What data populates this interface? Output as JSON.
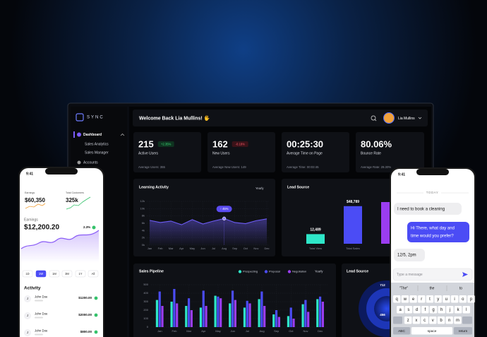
{
  "sidebar": {
    "logo": "SYNC",
    "items": [
      "Dashboard",
      "Sales Analytics",
      "Sales Manager",
      "Accounts"
    ]
  },
  "header": {
    "welcome": "Welcome Back Lia Mullins! 🖐",
    "user": "Lia Mullins"
  },
  "kpis": [
    {
      "value": "215",
      "change": "+2.35%",
      "label": "Active Users",
      "average": "Average Users: 355"
    },
    {
      "value": "162",
      "change": "-0.18%",
      "label": "New Users",
      "average": "Average New Users: 149"
    },
    {
      "value": "00:25:30",
      "label": "Average Time on Page",
      "average": "Average Time: 00:03:45"
    },
    {
      "value": "80.06%",
      "label": "Bounce Rate",
      "average": "Average Rate: 29.30%"
    }
  ],
  "learning_activity": {
    "title": "Learning Activity",
    "period": "Yearly",
    "ylim": [
      0,
      12000
    ],
    "yticks": [
      {
        "value": 0,
        "label": "0k"
      },
      {
        "value": 2000,
        "label": "2k"
      },
      {
        "value": 4000,
        "label": "4k"
      },
      {
        "value": 6000,
        "label": "6k"
      },
      {
        "value": 8000,
        "label": "8k"
      },
      {
        "value": 10000,
        "label": "10k"
      },
      {
        "value": 12000,
        "label": "12k"
      }
    ],
    "months": [
      "Jan",
      "Feb",
      "Mar",
      "Apr",
      "May",
      "Jun",
      "Jul",
      "Aug",
      "Sep",
      "Oct",
      "Nov",
      "Dec"
    ],
    "values": [
      6800,
      6200,
      6600,
      5600,
      7000,
      5800,
      6600,
      7300,
      6200,
      5900,
      6700,
      7200
    ],
    "color": "#6d5cf5",
    "tooltip": "↑ 45%"
  },
  "lead_source": {
    "title": "Lead Source",
    "ylim": [
      0,
      55000
    ],
    "bars": [
      {
        "label": "Total View",
        "value": 12489,
        "value_label": "12,489",
        "color": "#2ee6c8"
      },
      {
        "label": "Total Sales",
        "value": 48789,
        "value_label": "$48,789",
        "color": "#4b4cf5"
      }
    ]
  },
  "sales_pipeline": {
    "title": "Sales Pipeline",
    "period": "Yearly",
    "ylim": [
      0,
      500
    ],
    "yticks": [
      0,
      100,
      200,
      300,
      400,
      500
    ],
    "months": [
      "Jan",
      "Feb",
      "Mar",
      "Apr",
      "May",
      "Jun",
      "Jul",
      "Aug",
      "Sep",
      "Oct",
      "Nov",
      "Dec"
    ],
    "series": [
      {
        "name": "Prospecting",
        "color": "#2ee6c8",
        "values": [
          320,
          300,
          250,
          230,
          370,
          280,
          230,
          330,
          150,
          130,
          270,
          330
        ]
      },
      {
        "name": "Proposal",
        "color": "#4b4cf5",
        "values": [
          420,
          450,
          340,
          430,
          360,
          430,
          310,
          420,
          200,
          230,
          320,
          360
        ]
      },
      {
        "name": "Negotiation",
        "color": "#9b3df0",
        "values": [
          250,
          280,
          200,
          250,
          340,
          320,
          280,
          250,
          120,
          100,
          180,
          300
        ]
      }
    ]
  },
  "lead_source_2": {
    "title": "Lead Source",
    "labels": [
      "712",
      "456"
    ]
  },
  "phone_left": {
    "time": "9:41",
    "stats": [
      {
        "label": "Earnings",
        "value": "$60,350"
      },
      {
        "label": "Total Customers",
        "value": "325k"
      }
    ],
    "earnings_label": "Earnings",
    "earnings": "$12,200.20",
    "change": "2.3%",
    "ranges": [
      "1D",
      "1W",
      "1M",
      "3M",
      "1Y",
      "All"
    ],
    "activity_title": "Activity",
    "activity": [
      {
        "initial": "J",
        "name": "John Doe",
        "amount": "$1200.00"
      },
      {
        "initial": "J",
        "name": "John Doe",
        "amount": "$2000.00"
      },
      {
        "initial": "J",
        "name": "John Doe",
        "amount": "$800.00"
      }
    ]
  },
  "phone_right": {
    "time": "9:41",
    "day": "TODAY",
    "msg_in_1": "I need to book a cleaning",
    "msg_out": [
      "Hi There, what day and",
      "time would you prefer?"
    ],
    "msg_in_2": "12/5, 2pm",
    "placeholder": "Type a message",
    "suggestions": [
      "\"The\"",
      "the",
      "to"
    ],
    "keys": [
      [
        "q",
        "w",
        "e",
        "r",
        "t",
        "y",
        "u",
        "i",
        "o",
        "p"
      ],
      [
        "a",
        "s",
        "d",
        "f",
        "g",
        "h",
        "j",
        "k",
        "l"
      ],
      [
        "z",
        "x",
        "c",
        "v",
        "b",
        "n",
        "m"
      ]
    ],
    "bottom_keys": [
      "ABC",
      "space",
      "return"
    ]
  }
}
